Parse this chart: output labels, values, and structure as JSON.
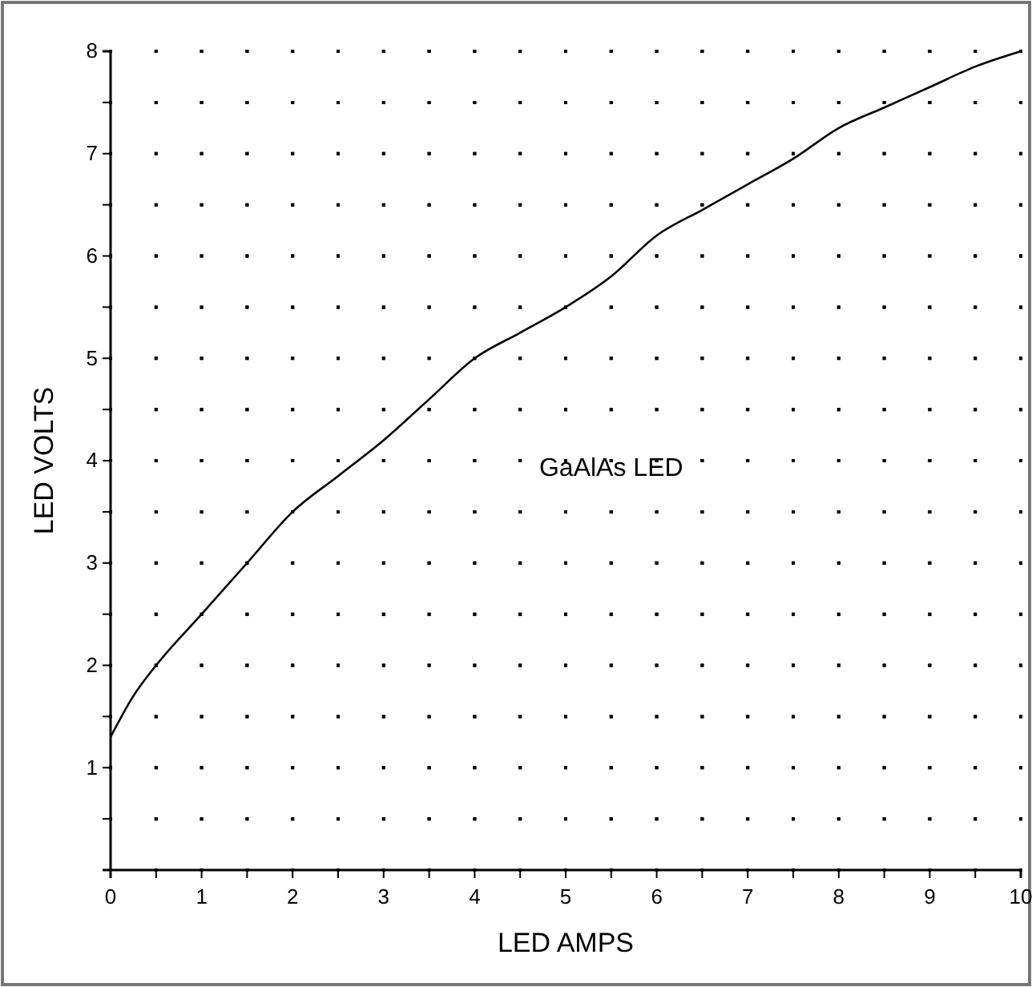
{
  "chart_data": {
    "type": "line",
    "xlabel": "LED AMPS",
    "ylabel": "LED VOLTS",
    "annotations": [
      "GaAlAs LED"
    ],
    "x": [
      0,
      0.25,
      0.5,
      1,
      1.5,
      2,
      2.5,
      3,
      3.5,
      4,
      4.5,
      5,
      5.5,
      6,
      6.5,
      7,
      7.5,
      8,
      8.5,
      9,
      9.5,
      10
    ],
    "series": [
      {
        "color": "#000000",
        "values": [
          1.3,
          1.7,
          2.0,
          2.5,
          3.0,
          3.5,
          3.85,
          4.2,
          4.6,
          5.0,
          5.25,
          5.5,
          5.8,
          6.2,
          6.45,
          6.7,
          6.95,
          7.25,
          7.45,
          7.65,
          7.85,
          8.0
        ]
      }
    ],
    "xlim": [
      0,
      10
    ],
    "ylim": [
      0,
      8
    ],
    "xticks": [
      0,
      {
        "value": 0.5,
        "label": null
      },
      1,
      {
        "value": 1.5,
        "label": null
      },
      2,
      {
        "value": 2.5,
        "label": null
      },
      3,
      {
        "value": 3.5,
        "label": null
      },
      4,
      {
        "value": 4.5,
        "label": null
      },
      5,
      {
        "value": 5.5,
        "label": null
      },
      6,
      {
        "value": 6.5,
        "label": null
      },
      7,
      {
        "value": 7.5,
        "label": null
      },
      8,
      {
        "value": 8.5,
        "label": null
      },
      9,
      {
        "value": 9.5,
        "label": null
      },
      10
    ],
    "yticks": [
      {
        "value": 0,
        "label": null
      },
      {
        "value": 0.5,
        "label": null
      },
      1,
      {
        "value": 1.5,
        "label": null
      },
      2,
      {
        "value": 2.5,
        "label": null
      },
      3,
      {
        "value": 3.5,
        "label": null
      },
      4,
      {
        "value": 4.5,
        "label": null
      },
      5,
      {
        "value": 5.5,
        "label": null
      },
      6,
      {
        "value": 6.5,
        "label": null
      },
      7,
      {
        "value": 7.5,
        "label": null
      },
      8
    ],
    "grid": true,
    "marker": "none",
    "line_style": "solid"
  }
}
